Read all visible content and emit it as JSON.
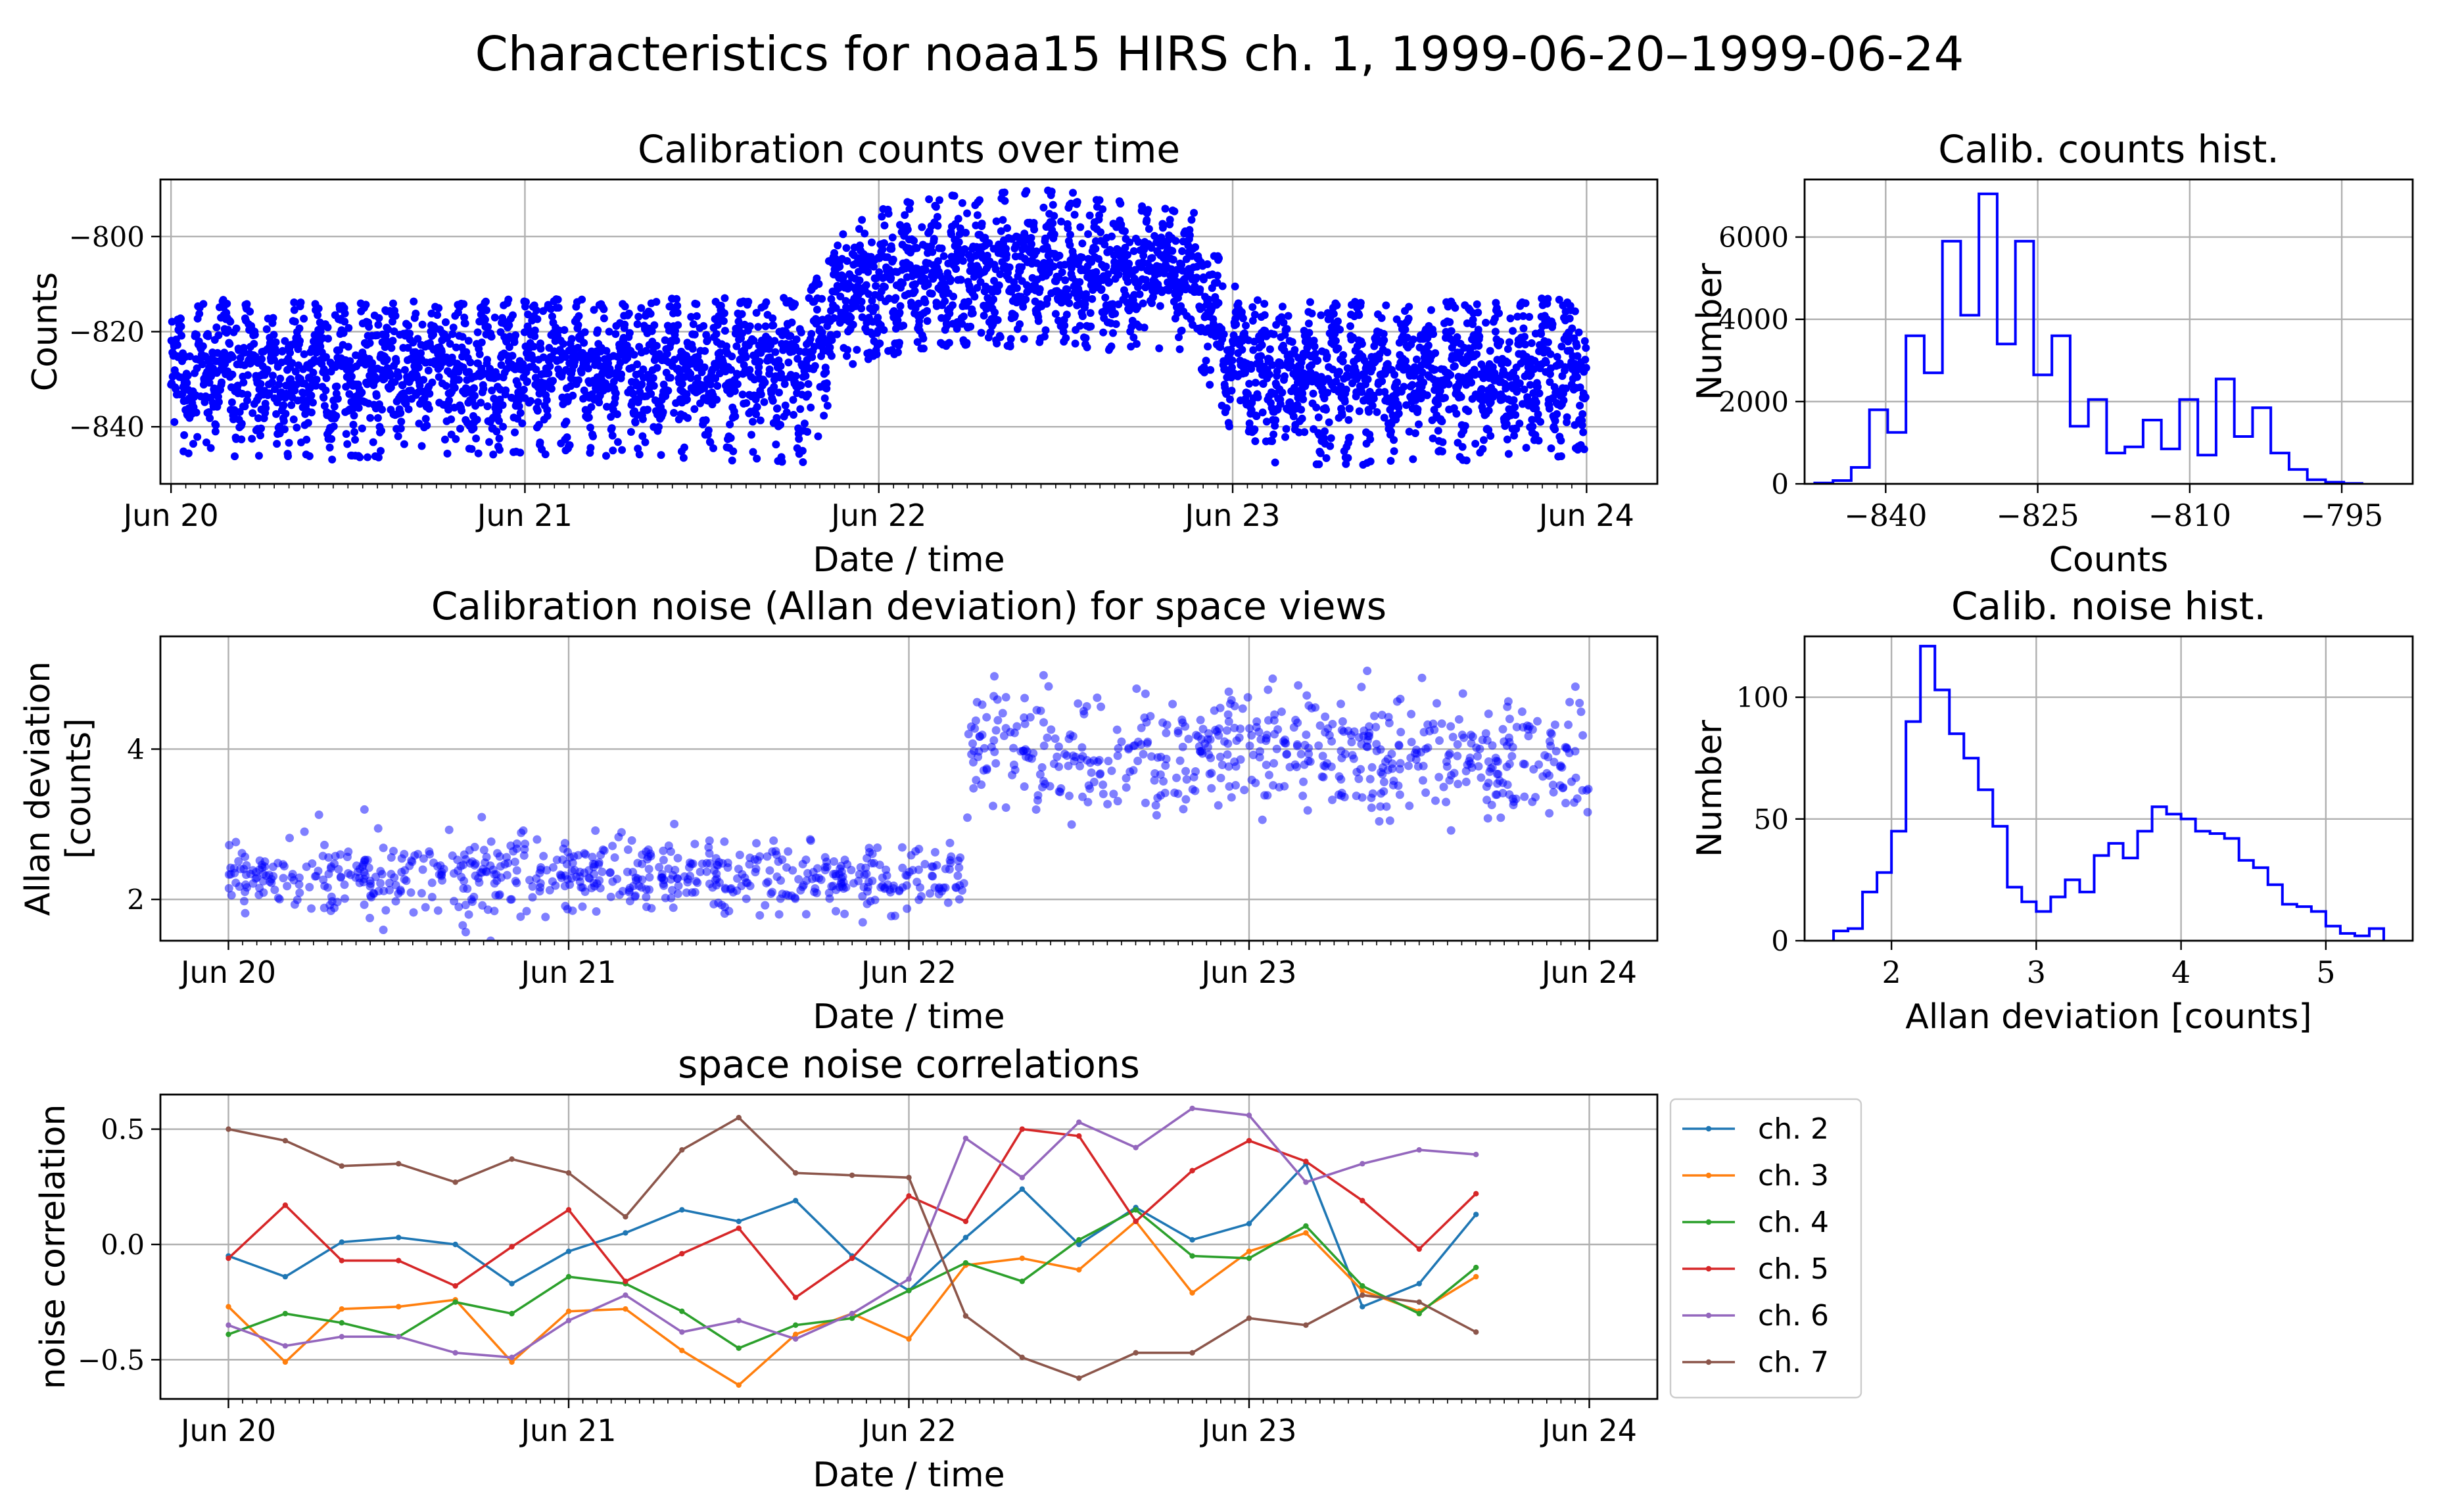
{
  "suptitle": "Characteristics for noaa15 HIRS ch. 1, 1999-06-20–1999-06-24",
  "colors": {
    "scatter": "#0000ff",
    "hist": "#0000ff",
    "grid": "#b0b0b0",
    "series": [
      "#1f77b4",
      "#ff7f0e",
      "#2ca02c",
      "#d62728",
      "#9467bd",
      "#8c564b"
    ]
  },
  "chart_data": [
    {
      "id": "counts_time",
      "type": "scatter",
      "title": "Calibration counts over time",
      "xlabel": "Date / time",
      "ylabel": "Counts",
      "xlim": [
        -0.03,
        4.2
      ],
      "ylim": [
        -852,
        -788
      ],
      "xticks": [
        0,
        1,
        2,
        3,
        4
      ],
      "xticklabels": [
        "Jun 20",
        "Jun 21",
        "Jun 22",
        "Jun 23",
        "Jun 24"
      ],
      "yticks": [
        -800,
        -820,
        -840
      ],
      "yticklabels": [
        "−800",
        "−820",
        "−840"
      ],
      "grid": true,
      "envelope": {
        "description": "dense point cloud of calibration counts; values estimated as center and spread per day-fraction",
        "time": [
          0.0,
          0.5,
          1.0,
          1.5,
          1.8,
          1.9,
          2.0,
          2.5,
          2.9,
          3.0,
          3.1,
          3.5,
          4.0
        ],
        "center": [
          -829,
          -829,
          -828,
          -828,
          -827,
          -812,
          -810,
          -807,
          -810,
          -826,
          -829,
          -829,
          -829
        ],
        "upper": [
          -813,
          -814,
          -813,
          -813,
          -812,
          -797,
          -792,
          -790,
          -795,
          -810,
          -814,
          -813,
          -813
        ],
        "lower": [
          -846,
          -847,
          -846,
          -847,
          -848,
          -828,
          -825,
          -823,
          -826,
          -842,
          -848,
          -848,
          -846
        ]
      }
    },
    {
      "id": "counts_hist",
      "type": "histogram",
      "title": "Calib. counts hist.",
      "xlabel": "Counts",
      "ylabel": "Number",
      "xlim": [
        -848,
        -788
      ],
      "ylim": [
        0,
        7400
      ],
      "xticks": [
        -840,
        -825,
        -810,
        -795
      ],
      "xticklabels": [
        "−840",
        "−825",
        "−810",
        "−795"
      ],
      "yticks": [
        0,
        2000,
        4000,
        6000
      ],
      "yticklabels": [
        "0",
        "2000",
        "4000",
        "6000"
      ],
      "grid": true,
      "bin_edges": [
        -847,
        -845.2,
        -843.4,
        -841.6,
        -839.8,
        -838,
        -836.2,
        -834.4,
        -832.6,
        -830.8,
        -829,
        -827.2,
        -825.4,
        -823.6,
        -821.8,
        -820,
        -818.2,
        -816.4,
        -814.6,
        -812.8,
        -811,
        -809.2,
        -807.4,
        -805.6,
        -803.8,
        -802,
        -800.2,
        -798.4,
        -796.6,
        -794.8,
        -793
      ],
      "counts": [
        20,
        80,
        400,
        1800,
        1250,
        3600,
        2700,
        5900,
        4100,
        7050,
        3400,
        5900,
        2650,
        3600,
        1400,
        2050,
        750,
        900,
        1550,
        850,
        2050,
        700,
        2550,
        1150,
        1850,
        750,
        350,
        100,
        40,
        10
      ]
    },
    {
      "id": "noise_time",
      "type": "scatter",
      "title": "Calibration noise (Allan deviation) for space views",
      "xlabel": "Date / time",
      "ylabel": "Allan deviation\n[counts]",
      "xlim": [
        -0.2,
        4.2
      ],
      "ylim": [
        1.45,
        5.5
      ],
      "xticks": [
        0,
        1,
        2,
        3,
        4
      ],
      "xticklabels": [
        "Jun 20",
        "Jun 21",
        "Jun 22",
        "Jun 23",
        "Jun 24"
      ],
      "yticks": [
        2,
        4
      ],
      "yticklabels": [
        "2",
        "4"
      ],
      "grid": true,
      "segments": [
        {
          "t_start": 0.0,
          "t_end": 2.17,
          "mean": 2.3,
          "std": 0.25,
          "n": 640
        },
        {
          "t_start": 2.17,
          "t_end": 4.0,
          "mean": 3.95,
          "std": 0.38,
          "n": 560
        }
      ]
    },
    {
      "id": "noise_hist",
      "type": "histogram",
      "title": "Calib. noise hist.",
      "xlabel": "Allan deviation [counts]",
      "ylabel": "Number",
      "xlim": [
        1.4,
        5.6
      ],
      "ylim": [
        0,
        125
      ],
      "xticks": [
        2,
        3,
        4,
        5
      ],
      "xticklabels": [
        "2",
        "3",
        "4",
        "5"
      ],
      "yticks": [
        0,
        50,
        100
      ],
      "yticklabels": [
        "0",
        "50",
        "100"
      ],
      "grid": true,
      "bin_edges": [
        1.6,
        1.7,
        1.8,
        1.9,
        2.0,
        2.1,
        2.2,
        2.3,
        2.4,
        2.5,
        2.6,
        2.7,
        2.8,
        2.9,
        3.0,
        3.1,
        3.2,
        3.3,
        3.4,
        3.5,
        3.6,
        3.7,
        3.8,
        3.9,
        4.0,
        4.1,
        4.2,
        4.3,
        4.4,
        4.5,
        4.6,
        4.7,
        4.8,
        4.9,
        5.0,
        5.1,
        5.2,
        5.3,
        5.4
      ],
      "counts": [
        4,
        5,
        20,
        28,
        45,
        90,
        121,
        103,
        85,
        75,
        62,
        47,
        22,
        16,
        12,
        18,
        25,
        20,
        35,
        40,
        34,
        45,
        55,
        52,
        50,
        45,
        44,
        42,
        33,
        30,
        23,
        15,
        14,
        12,
        6,
        3,
        2,
        5
      ]
    },
    {
      "id": "noise_corr",
      "type": "line",
      "title": "space noise correlations",
      "xlabel": "Date / time",
      "ylabel": "noise correlation",
      "xlim": [
        -0.2,
        4.2
      ],
      "ylim": [
        -0.67,
        0.65
      ],
      "xticks": [
        0,
        1,
        2,
        3,
        4
      ],
      "xticklabels": [
        "Jun 20",
        "Jun 21",
        "Jun 22",
        "Jun 23",
        "Jun 24"
      ],
      "yticks": [
        0.5,
        0.0,
        -0.5
      ],
      "yticklabels": [
        "0.5",
        "0.0",
        "−0.5"
      ],
      "grid": true,
      "legend_position": "outside-right",
      "x": [
        0.0,
        0.167,
        0.333,
        0.5,
        0.667,
        0.833,
        1.0,
        1.167,
        1.333,
        1.5,
        1.667,
        1.833,
        2.0,
        2.167,
        2.333,
        2.5,
        2.667,
        2.833,
        3.0,
        3.167,
        3.333,
        3.5,
        3.667
      ],
      "series": [
        {
          "name": "ch. 2",
          "values": [
            -0.05,
            -0.14,
            0.01,
            0.03,
            0.0,
            -0.17,
            -0.03,
            0.05,
            0.15,
            0.1,
            0.19,
            -0.05,
            -0.2,
            0.03,
            0.24,
            0.0,
            0.16,
            0.02,
            0.09,
            0.35,
            -0.27,
            -0.17,
            0.13
          ]
        },
        {
          "name": "ch. 3",
          "values": [
            -0.27,
            -0.51,
            -0.28,
            -0.27,
            -0.24,
            -0.51,
            -0.29,
            -0.28,
            -0.46,
            -0.61,
            -0.39,
            -0.3,
            -0.41,
            -0.09,
            -0.06,
            -0.11,
            0.1,
            -0.21,
            -0.03,
            0.05,
            -0.2,
            -0.29,
            -0.14
          ]
        },
        {
          "name": "ch. 4",
          "values": [
            -0.39,
            -0.3,
            -0.34,
            -0.4,
            -0.25,
            -0.3,
            -0.14,
            -0.17,
            -0.29,
            -0.45,
            -0.35,
            -0.32,
            -0.2,
            -0.08,
            -0.16,
            0.02,
            0.15,
            -0.05,
            -0.06,
            0.08,
            -0.18,
            -0.3,
            -0.1
          ]
        },
        {
          "name": "ch. 5",
          "values": [
            -0.06,
            0.17,
            -0.07,
            -0.07,
            -0.18,
            -0.01,
            0.15,
            -0.16,
            -0.04,
            0.07,
            -0.23,
            -0.06,
            0.21,
            0.1,
            0.5,
            0.47,
            0.1,
            0.32,
            0.45,
            0.36,
            0.19,
            -0.02,
            0.22
          ]
        },
        {
          "name": "ch. 6",
          "values": [
            -0.35,
            -0.44,
            -0.4,
            -0.4,
            -0.47,
            -0.49,
            -0.33,
            -0.22,
            -0.38,
            -0.33,
            -0.41,
            -0.3,
            -0.15,
            0.46,
            0.29,
            0.53,
            0.42,
            0.59,
            0.56,
            0.27,
            0.35,
            0.41,
            0.39
          ]
        },
        {
          "name": "ch. 7",
          "values": [
            0.5,
            0.45,
            0.34,
            0.35,
            0.27,
            0.37,
            0.31,
            0.12,
            0.41,
            0.55,
            0.31,
            0.3,
            0.29,
            -0.31,
            -0.49,
            -0.58,
            -0.47,
            -0.47,
            -0.32,
            -0.35,
            -0.22,
            -0.25,
            -0.38
          ]
        }
      ]
    }
  ]
}
